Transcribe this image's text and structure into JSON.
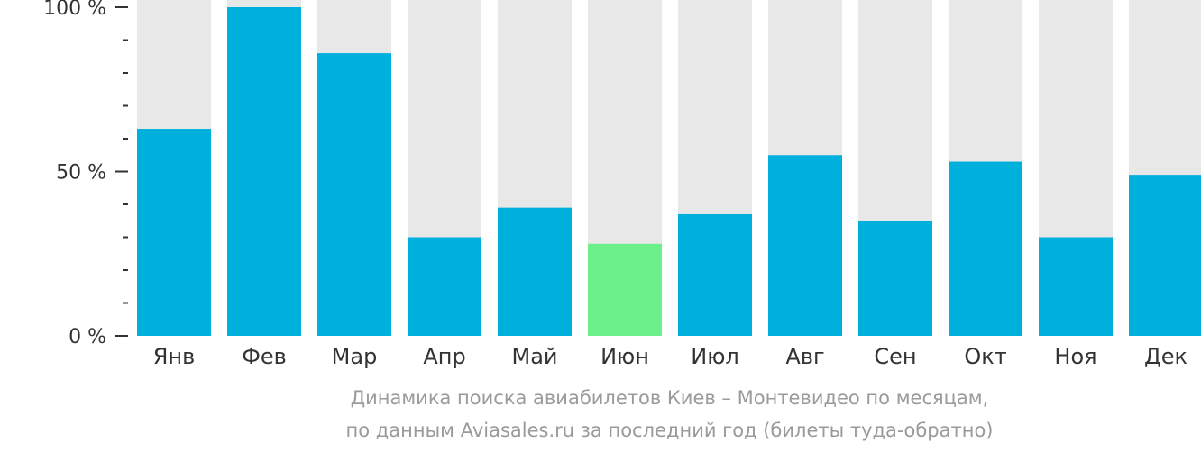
{
  "chart_data": {
    "type": "bar",
    "categories": [
      "Янв",
      "Фев",
      "Мар",
      "Апр",
      "Май",
      "Июн",
      "Июл",
      "Авг",
      "Сен",
      "Окт",
      "Ноя",
      "Дек"
    ],
    "values": [
      63,
      100,
      86,
      30,
      39,
      28,
      37,
      55,
      35,
      53,
      30,
      49
    ],
    "highlight_index": 5,
    "ylim": [
      0,
      100
    ],
    "yticks": [
      {
        "value": 0,
        "label": "0 %"
      },
      {
        "value": 50,
        "label": "50 %"
      },
      {
        "value": 100,
        "label": "100 %"
      }
    ],
    "colors": {
      "bar": "#00b0dc",
      "highlight": "#6cf08a",
      "background_bar": "#e8e8e8",
      "axis": "#333333",
      "caption": "#9a9a9a"
    },
    "caption_line1": "Динамика поиска авиабилетов Киев – Монтевидео по месяцам,",
    "caption_line2": "по данным Aviasales.ru за последний год (билеты туда-обратно)"
  }
}
